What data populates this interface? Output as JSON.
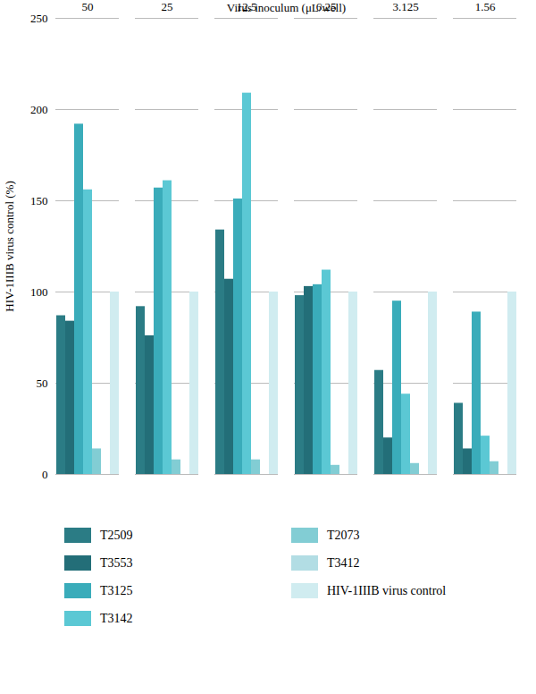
{
  "chart_data": {
    "type": "bar",
    "categories": [
      "50",
      "25",
      "12.5",
      "6.25",
      "3.125",
      "1.56"
    ],
    "series": [
      {
        "name": "T2509",
        "color": "#2b7c85",
        "values": [
          87,
          92,
          134,
          98,
          57,
          39
        ]
      },
      {
        "name": "T3553",
        "color": "#236e78",
        "values": [
          84,
          76,
          107,
          103,
          20,
          14
        ]
      },
      {
        "name": "T3125",
        "color": "#3aacba",
        "values": [
          192,
          157,
          151,
          104,
          95,
          89
        ]
      },
      {
        "name": "T3142",
        "color": "#5bc8d4",
        "values": [
          156,
          161,
          209,
          112,
          44,
          21
        ]
      },
      {
        "name": "T2073",
        "color": "#82cdd4",
        "values": [
          14,
          8,
          8,
          5,
          6,
          7
        ]
      },
      {
        "name": "T3412",
        "color": "#b2dde4",
        "values": [
          0,
          0,
          0,
          0,
          0,
          0
        ]
      },
      {
        "name": "HIV-1IIIB virus control",
        "color": "#d0ecf0",
        "values": [
          100,
          100,
          100,
          100,
          100,
          100
        ]
      }
    ],
    "xlabel": "Virus inoculum (μL/well)",
    "ylabel": "HIV-1IIIB virus control (%)",
    "ylim": [
      0,
      250
    ],
    "yticks": [
      0,
      50,
      100,
      150,
      200,
      250
    ],
    "grid": true,
    "legend": "bottom"
  }
}
